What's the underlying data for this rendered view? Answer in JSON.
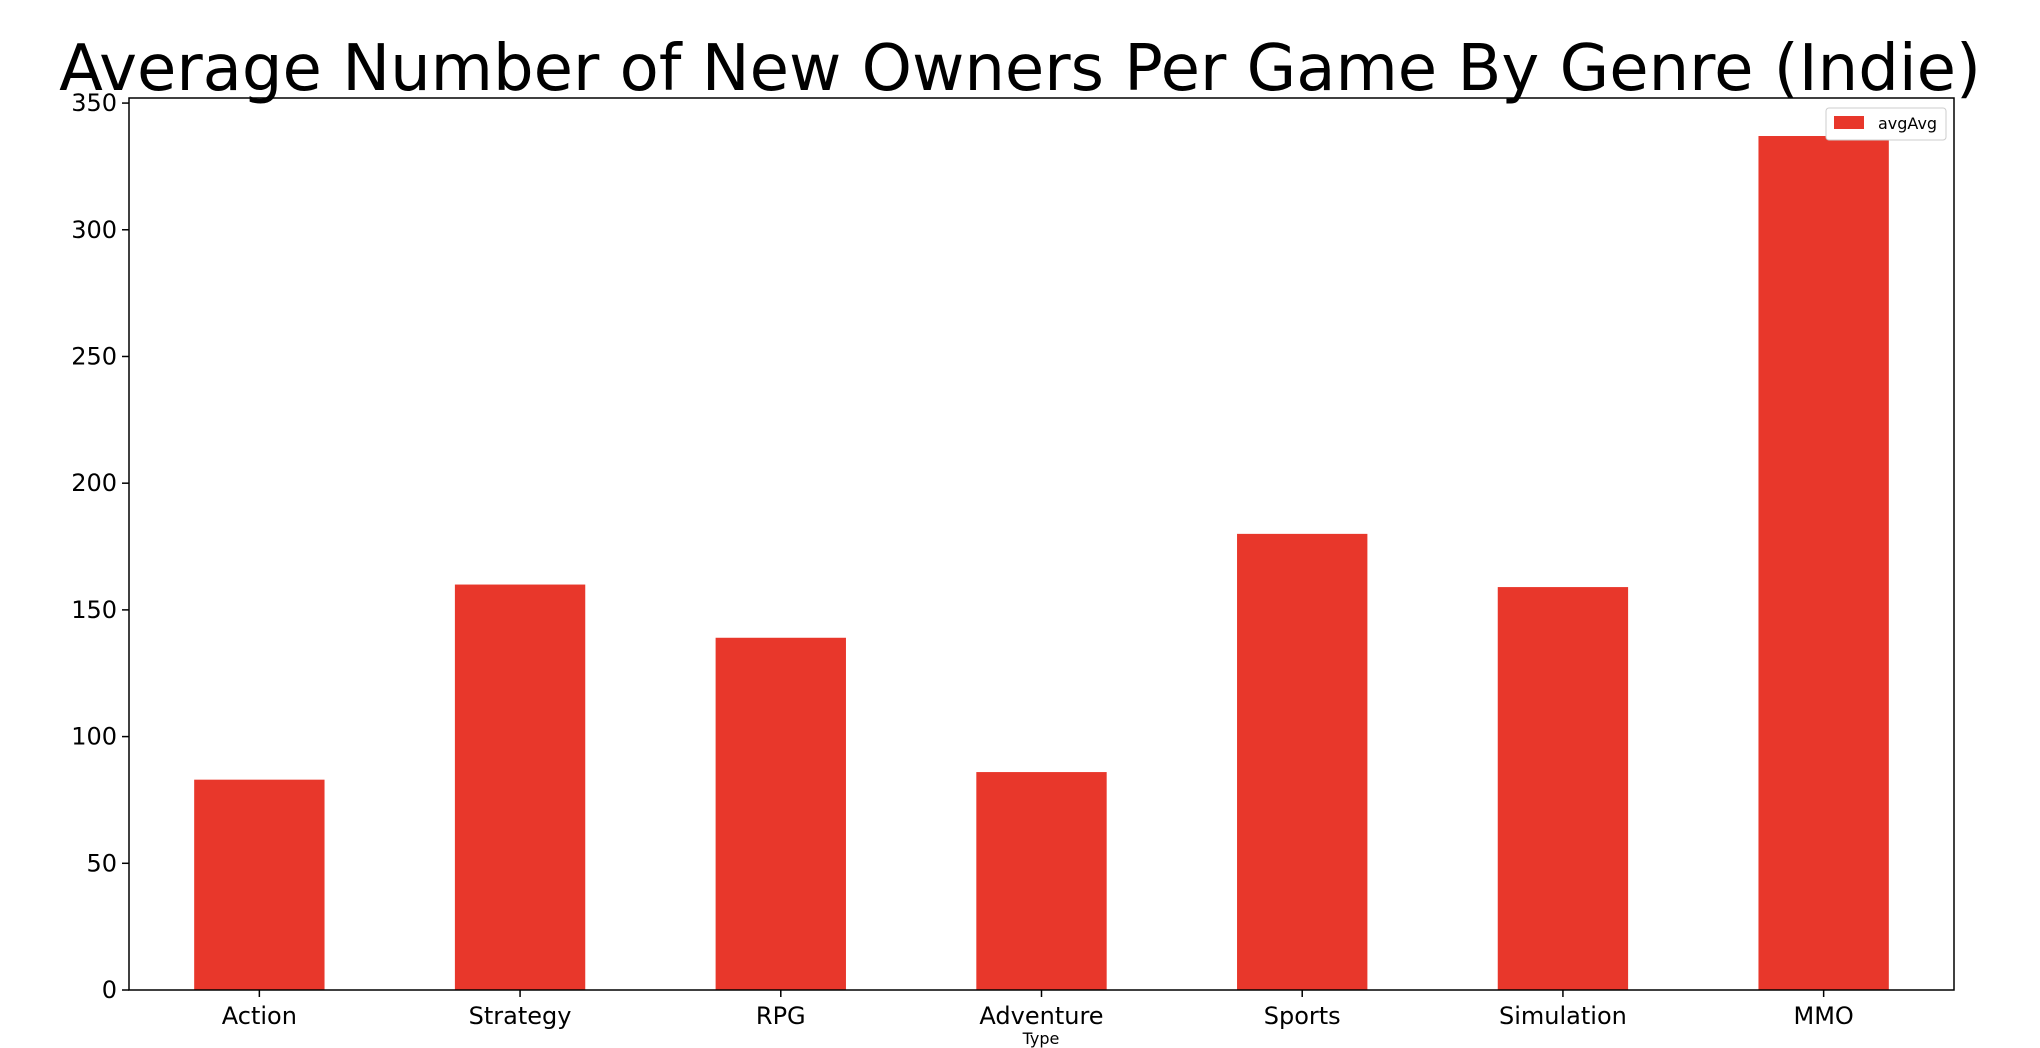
{
  "chart_data": {
    "type": "bar",
    "title": "Average Number of New Owners Per Game By Genre (Indie)",
    "xlabel": "Type",
    "ylabel": "",
    "categories": [
      "Action",
      "Strategy",
      "RPG",
      "Adventure",
      "Sports",
      "Simulation",
      "MMO"
    ],
    "series": [
      {
        "name": "avgAvg",
        "values": [
          83,
          160,
          139,
          86,
          180,
          159,
          337
        ],
        "color": "#e8372b"
      }
    ],
    "ylim": [
      0,
      352
    ],
    "yticks": [
      0,
      50,
      100,
      150,
      200,
      250,
      300,
      350
    ],
    "grid": false,
    "legend": "top-right"
  }
}
